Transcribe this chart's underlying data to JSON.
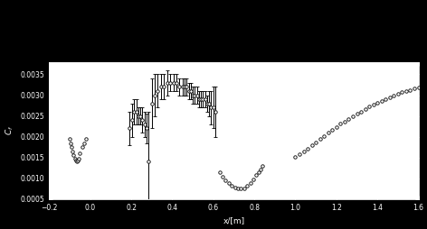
{
  "xlabel": "x/[m]",
  "ylabel": "$C_f$",
  "xlim": [
    -0.2,
    1.6
  ],
  "ylim": [
    0.0005,
    0.0038
  ],
  "yticks": [
    0.0005,
    0.001,
    0.0015,
    0.002,
    0.0025,
    0.003,
    0.0035
  ],
  "xticks": [
    -0.2,
    0.0,
    0.2,
    0.4,
    0.6,
    0.8,
    1.0,
    1.2,
    1.4,
    1.6
  ],
  "upper_x": [
    0.19,
    0.205,
    0.215,
    0.225,
    0.235,
    0.245,
    0.255,
    0.265,
    0.275,
    0.285,
    0.3,
    0.315,
    0.33,
    0.345,
    0.36,
    0.375,
    0.39,
    0.405,
    0.42,
    0.435,
    0.45,
    0.46,
    0.47,
    0.48,
    0.49,
    0.5,
    0.51,
    0.52,
    0.53,
    0.54,
    0.55,
    0.56,
    0.57,
    0.58,
    0.59,
    0.6,
    0.61
  ],
  "upper_y": [
    0.0022,
    0.0024,
    0.0026,
    0.0026,
    0.0025,
    0.0025,
    0.0024,
    0.0023,
    0.0022,
    0.0014,
    0.0028,
    0.003,
    0.0031,
    0.0032,
    0.0032,
    0.0033,
    0.0033,
    0.0033,
    0.0033,
    0.0032,
    0.0032,
    0.0032,
    0.0032,
    0.0031,
    0.0031,
    0.003,
    0.003,
    0.003,
    0.0029,
    0.0029,
    0.0029,
    0.0029,
    0.0028,
    0.0028,
    0.0027,
    0.0027,
    0.0026
  ],
  "upper_yerr": [
    0.0004,
    0.0004,
    0.0003,
    0.0003,
    0.0002,
    0.0002,
    0.0003,
    0.0003,
    0.00035,
    0.0012,
    0.0006,
    0.0005,
    0.0004,
    0.0003,
    0.0003,
    0.0003,
    0.0002,
    0.0002,
    0.0002,
    0.0002,
    0.0002,
    0.0002,
    0.0002,
    0.0002,
    0.0002,
    0.0002,
    0.0002,
    0.0002,
    0.0002,
    0.0002,
    0.0002,
    0.0002,
    0.0002,
    0.0003,
    0.0004,
    0.0005,
    0.0006
  ],
  "lower_x_left": [
    -0.1,
    -0.095,
    -0.09,
    -0.085,
    -0.08,
    -0.075,
    -0.07,
    -0.065,
    -0.06,
    -0.055,
    -0.05,
    -0.04,
    -0.03,
    -0.02
  ],
  "lower_y_left": [
    0.00195,
    0.00185,
    0.00175,
    0.00165,
    0.00155,
    0.00148,
    0.00143,
    0.0014,
    0.00142,
    0.00148,
    0.0016,
    0.00175,
    0.00185,
    0.00195
  ],
  "lower_x_mid": [
    0.63,
    0.645,
    0.66,
    0.675,
    0.69,
    0.705,
    0.72,
    0.735,
    0.75,
    0.765,
    0.78,
    0.795,
    0.81,
    0.82,
    0.83,
    0.84
  ],
  "lower_y_mid": [
    0.00115,
    0.00105,
    0.00095,
    0.00088,
    0.00082,
    0.00078,
    0.00075,
    0.00075,
    0.00077,
    0.00082,
    0.00089,
    0.00098,
    0.00108,
    0.00115,
    0.00122,
    0.0013
  ],
  "lower_x_right": [
    1.0,
    1.02,
    1.04,
    1.06,
    1.08,
    1.1,
    1.12,
    1.14,
    1.16,
    1.18,
    1.2,
    1.22,
    1.24,
    1.26,
    1.28,
    1.3,
    1.32,
    1.34,
    1.36,
    1.38,
    1.4,
    1.42,
    1.44,
    1.46,
    1.48,
    1.5,
    1.52,
    1.54,
    1.56,
    1.58,
    1.6
  ],
  "lower_y_right": [
    0.00152,
    0.00158,
    0.00165,
    0.00172,
    0.0018,
    0.00187,
    0.00195,
    0.00202,
    0.0021,
    0.00217,
    0.00224,
    0.00231,
    0.00237,
    0.00243,
    0.00249,
    0.00255,
    0.00261,
    0.00267,
    0.00272,
    0.00277,
    0.00282,
    0.00287,
    0.00291,
    0.00295,
    0.00299,
    0.00303,
    0.00307,
    0.0031,
    0.00313,
    0.00316,
    0.00318
  ],
  "markersize": 2.5,
  "capsize": 1.5,
  "elinewidth": 0.7,
  "markeredgewidth": 0.6,
  "figure_facecolor": "#000000",
  "axes_facecolor": "#ffffff",
  "tick_fontsize": 5.5,
  "label_fontsize": 6.5
}
